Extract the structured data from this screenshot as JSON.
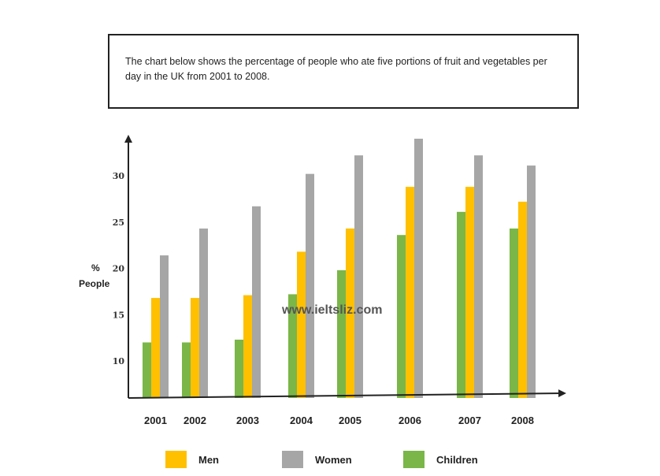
{
  "description": "The chart below shows the percentage of people who ate five portions of fruit and vegetables per day in the UK from 2001 to 2008.",
  "watermark": "www.ieltsliz.com",
  "chart_data": {
    "type": "bar",
    "title": "",
    "xlabel": "",
    "ylabel": "% People",
    "ylabel_lines": [
      "%",
      "People"
    ],
    "ylim": [
      6,
      34
    ],
    "yticks": [
      10,
      15,
      20,
      25,
      30
    ],
    "grid": false,
    "legend_position": "bottom",
    "categories": [
      "2001",
      "2002",
      "2003",
      "2004",
      "2005",
      "2006",
      "2007",
      "2008"
    ],
    "series": [
      {
        "name": "Children",
        "color": "#7ab648",
        "values": [
          12,
          12,
          12.3,
          17.2,
          19.8,
          23.6,
          26.1,
          24.3
        ]
      },
      {
        "name": "Men",
        "color": "#ffc000",
        "values": [
          16.8,
          16.8,
          17.1,
          21.8,
          24.3,
          28.8,
          28.8,
          27.2
        ]
      },
      {
        "name": "Women",
        "color": "#a6a6a6",
        "values": [
          21.4,
          24.3,
          26.7,
          30.2,
          32.2,
          34,
          32.2,
          31.1
        ]
      }
    ],
    "legend": [
      {
        "name": "Men",
        "color": "#ffc000"
      },
      {
        "name": "Women",
        "color": "#a6a6a6"
      },
      {
        "name": "Children",
        "color": "#7ab648"
      }
    ]
  }
}
